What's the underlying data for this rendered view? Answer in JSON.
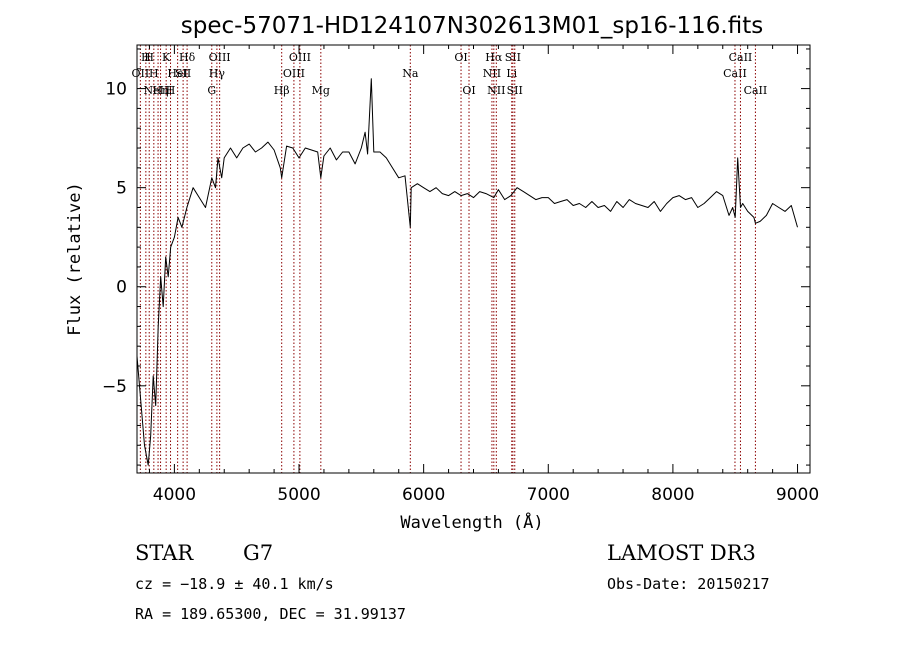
{
  "chart_data": {
    "type": "line",
    "title": "spec-57071-HD124107N302613M01_sp16-116.fits",
    "xlabel": "Wavelength (Å)",
    "ylabel": "Flux (relative)",
    "xlim": [
      3700,
      9100
    ],
    "ylim": [
      -9.4,
      12.2
    ],
    "xticks": [
      4000,
      5000,
      6000,
      7000,
      8000,
      9000
    ],
    "xtick_labels": [
      "4000",
      "5000",
      "6000",
      "7000",
      "8000",
      "9000"
    ],
    "yticks": [
      -5,
      0,
      5,
      10
    ],
    "ytick_labels": [
      "−5",
      "0",
      "5",
      "10"
    ],
    "grid": false,
    "series": [
      {
        "x": [
          3700,
          3760,
          3790,
          3810,
          3830,
          3850,
          3870,
          3890,
          3910,
          3930,
          3950,
          3970,
          4000,
          4030,
          4060,
          4100,
          4150,
          4200,
          4250,
          4300,
          4330,
          4350,
          4380,
          4400,
          4450,
          4500,
          4550,
          4600,
          4650,
          4700,
          4750,
          4800,
          4850,
          4861,
          4900,
          4950,
          5000,
          5050,
          5100,
          5150,
          5175,
          5200,
          5250,
          5300,
          5350,
          5400,
          5450,
          5500,
          5530,
          5550,
          5580,
          5600,
          5650,
          5700,
          5750,
          5800,
          5850,
          5893,
          5900,
          5950,
          6000,
          6050,
          6100,
          6150,
          6200,
          6250,
          6300,
          6350,
          6400,
          6450,
          6500,
          6563,
          6600,
          6650,
          6700,
          6750,
          6800,
          6850,
          6900,
          6950,
          7000,
          7050,
          7100,
          7150,
          7200,
          7250,
          7300,
          7350,
          7400,
          7450,
          7500,
          7550,
          7600,
          7650,
          7700,
          7750,
          7800,
          7850,
          7900,
          7950,
          8000,
          8050,
          8100,
          8150,
          8200,
          8250,
          8300,
          8350,
          8400,
          8450,
          8480,
          8500,
          8520,
          8542,
          8560,
          8600,
          8650,
          8662,
          8700,
          8750,
          8800,
          8850,
          8900,
          8950,
          9000
        ],
        "y": [
          -3.5,
          -8.0,
          -9.0,
          -7.5,
          -4.5,
          -6.0,
          -2.0,
          0.5,
          -1.0,
          1.5,
          0.5,
          2.0,
          2.5,
          3.5,
          3.0,
          4.0,
          5.0,
          4.5,
          4.0,
          5.5,
          5.0,
          6.5,
          5.5,
          6.5,
          7.0,
          6.5,
          7.0,
          7.2,
          6.8,
          7.0,
          7.3,
          6.9,
          6.0,
          5.5,
          7.1,
          7.0,
          6.5,
          7.0,
          6.9,
          6.8,
          5.5,
          6.6,
          7.0,
          6.4,
          6.8,
          6.8,
          6.2,
          7.0,
          7.8,
          6.7,
          10.5,
          6.8,
          6.8,
          6.5,
          6.0,
          5.5,
          5.6,
          3.0,
          5.0,
          5.2,
          5.0,
          4.8,
          5.0,
          4.7,
          4.6,
          4.8,
          4.6,
          4.7,
          4.5,
          4.8,
          4.7,
          4.5,
          4.9,
          4.4,
          4.6,
          5.0,
          4.8,
          4.6,
          4.4,
          4.5,
          4.5,
          4.2,
          4.3,
          4.4,
          4.1,
          4.2,
          4.0,
          4.3,
          4.0,
          4.1,
          3.8,
          4.3,
          4.0,
          4.4,
          4.2,
          4.1,
          4.0,
          4.3,
          3.8,
          4.2,
          4.5,
          4.6,
          4.4,
          4.5,
          4.0,
          4.2,
          4.5,
          4.8,
          4.6,
          3.6,
          4.0,
          3.5,
          6.5,
          4.0,
          4.2,
          3.8,
          3.5,
          3.2,
          3.3,
          3.6,
          4.2,
          4.0,
          3.8,
          4.1,
          3.0
        ]
      }
    ],
    "lines": [
      {
        "wavelength": 3727,
        "label": "OII",
        "row": 2
      },
      {
        "wavelength": 3771,
        "label": "H",
        "row": 1
      },
      {
        "wavelength": 3798,
        "label": "H",
        "row": 1
      },
      {
        "wavelength": 3835,
        "label": "H",
        "row": 2
      },
      {
        "wavelength": 3869,
        "label": "NeIII",
        "row": 3
      },
      {
        "wavelength": 3889,
        "label": "Hη",
        "row": 3
      },
      {
        "wavelength": 3934,
        "label": "K",
        "row": 1
      },
      {
        "wavelength": 3969,
        "label": "H",
        "row": 3
      },
      {
        "wavelength": 4026,
        "label": "HeI",
        "row": 2
      },
      {
        "wavelength": 4070,
        "label": "SII",
        "row": 2
      },
      {
        "wavelength": 4102,
        "label": "Hδ",
        "row": 1
      },
      {
        "wavelength": 4300,
        "label": "G",
        "row": 3
      },
      {
        "wavelength": 4341,
        "label": "Hγ",
        "row": 2
      },
      {
        "wavelength": 4363,
        "label": "OIII",
        "row": 1
      },
      {
        "wavelength": 4861,
        "label": "Hβ",
        "row": 3
      },
      {
        "wavelength": 4959,
        "label": "OIII",
        "row": 2
      },
      {
        "wavelength": 5007,
        "label": "OIII",
        "row": 1
      },
      {
        "wavelength": 5175,
        "label": "Mg",
        "row": 3
      },
      {
        "wavelength": 5893,
        "label": "Na",
        "row": 2
      },
      {
        "wavelength": 6300,
        "label": "OI",
        "row": 1
      },
      {
        "wavelength": 6364,
        "label": "OI",
        "row": 3
      },
      {
        "wavelength": 6548,
        "label": "NII",
        "row": 2
      },
      {
        "wavelength": 6563,
        "label": "Hα",
        "row": 1
      },
      {
        "wavelength": 6583,
        "label": "NII",
        "row": 3
      },
      {
        "wavelength": 6707,
        "label": "Li",
        "row": 2
      },
      {
        "wavelength": 6716,
        "label": "SII",
        "row": 1
      },
      {
        "wavelength": 6731,
        "label": "SII",
        "row": 3
      },
      {
        "wavelength": 8498,
        "label": "CaII",
        "row": 2
      },
      {
        "wavelength": 8542,
        "label": "CaII",
        "row": 1
      },
      {
        "wavelength": 8662,
        "label": "CaII",
        "row": 3
      }
    ],
    "line_color": "#8b0000"
  },
  "info": {
    "class_label": "STAR",
    "subclass": "G7",
    "survey": "LAMOST DR3",
    "cz": "cz = −18.9 ± 40.1 km/s",
    "obs_date": "Obs-Date: 20150217",
    "coords": "RA = 189.65300, DEC =  31.99137"
  }
}
